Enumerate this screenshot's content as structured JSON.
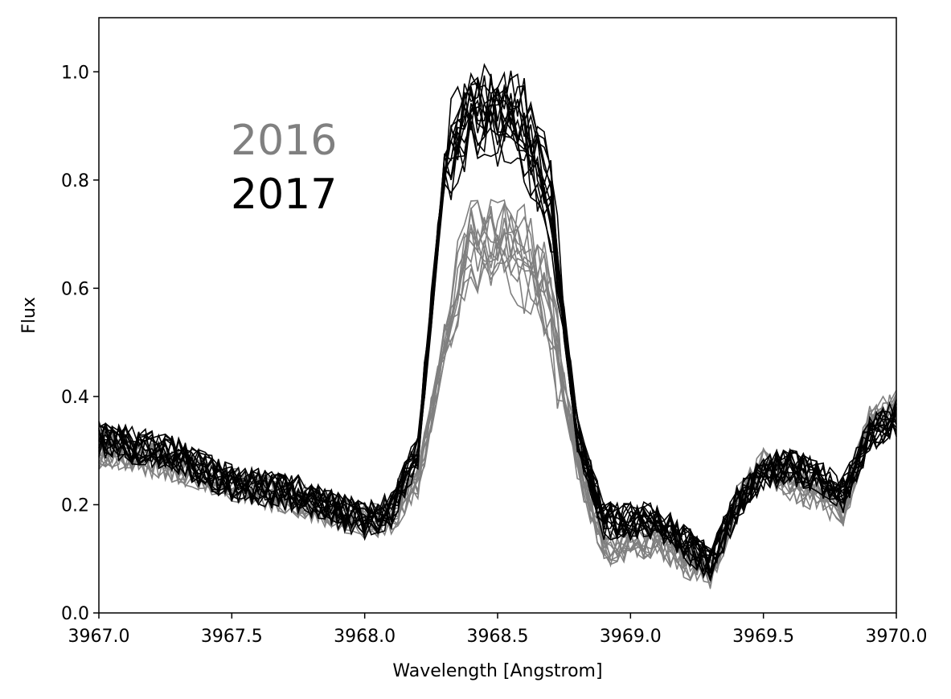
{
  "chart_data": {
    "type": "line",
    "title": "",
    "xlabel": "Wavelength [Angstrom]",
    "ylabel": "Flux",
    "xlim": [
      3967.0,
      3970.0
    ],
    "ylim": [
      0.0,
      1.1
    ],
    "xticks": [
      3967.0,
      3967.5,
      3968.0,
      3968.5,
      3969.0,
      3969.5,
      3970.0
    ],
    "xtick_labels": [
      "3967.0",
      "3967.5",
      "3968.0",
      "3968.5",
      "3969.0",
      "3969.5",
      "3970.0"
    ],
    "yticks": [
      0.0,
      0.2,
      0.4,
      0.6,
      0.8,
      1.0
    ],
    "ytick_labels": [
      "0.0",
      "0.2",
      "0.4",
      "0.6",
      "0.8",
      "1.0"
    ],
    "grid": false,
    "legend": "none",
    "annotations": [
      {
        "text": "2016",
        "color": "#808080"
      },
      {
        "text": "2017",
        "color": "#000000"
      }
    ],
    "x": [
      3967.0,
      3967.25,
      3967.5,
      3967.75,
      3968.0,
      3968.1,
      3968.2,
      3968.3,
      3968.4,
      3968.5,
      3968.6,
      3968.7,
      3968.8,
      3968.9,
      3969.0,
      3969.1,
      3969.2,
      3969.3,
      3969.4,
      3969.5,
      3969.6,
      3969.7,
      3969.8,
      3969.9,
      3970.0
    ],
    "series": [
      {
        "group": "2016",
        "color": "#808080",
        "count": 12,
        "values": [
          0.3,
          0.28,
          0.24,
          0.21,
          0.17,
          0.18,
          0.24,
          0.5,
          0.68,
          0.68,
          0.66,
          0.55,
          0.28,
          0.12,
          0.12,
          0.14,
          0.1,
          0.08,
          0.2,
          0.27,
          0.24,
          0.22,
          0.19,
          0.35,
          0.38
        ]
      },
      {
        "group": "2017",
        "color": "#000000",
        "count": 16,
        "values": [
          0.32,
          0.3,
          0.24,
          0.22,
          0.17,
          0.19,
          0.3,
          0.82,
          0.93,
          0.92,
          0.9,
          0.75,
          0.33,
          0.17,
          0.17,
          0.17,
          0.13,
          0.09,
          0.2,
          0.26,
          0.27,
          0.25,
          0.22,
          0.33,
          0.36
        ]
      }
    ]
  }
}
